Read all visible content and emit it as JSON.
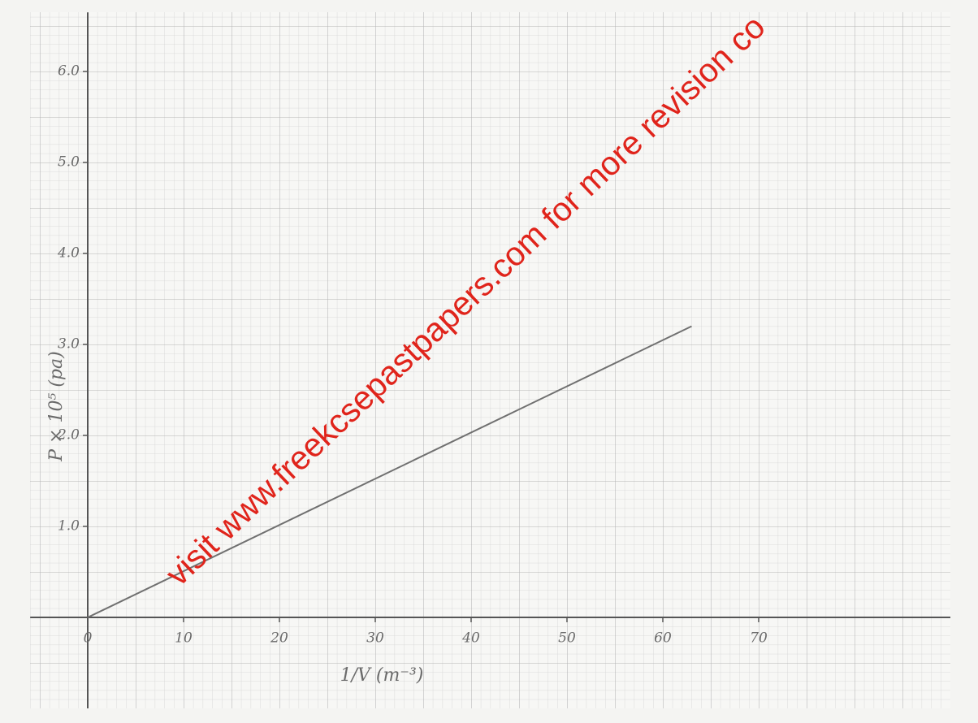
{
  "chart_data": {
    "type": "line",
    "x_label": "1/V (m⁻³)",
    "y_label": "P × 10⁵ (pa)",
    "watermark": "visit www.freekcsepastpapers.com for more revision co",
    "x": [
      0,
      63
    ],
    "values": [
      0,
      3.2
    ],
    "color": "#707070",
    "xlim": [
      -6,
      90
    ],
    "ylim": [
      -1,
      6.65
    ],
    "xticks": [
      0,
      10,
      20,
      30,
      40,
      50,
      60,
      70
    ],
    "yticks": [
      {
        "value": 1,
        "label": "1.0"
      },
      {
        "value": 2,
        "label": "2.0"
      },
      {
        "value": 3,
        "label": "3.0"
      },
      {
        "value": 4,
        "label": "4.0"
      },
      {
        "value": 5,
        "label": "5.0"
      },
      {
        "value": 6,
        "label": "6.0"
      }
    ]
  }
}
